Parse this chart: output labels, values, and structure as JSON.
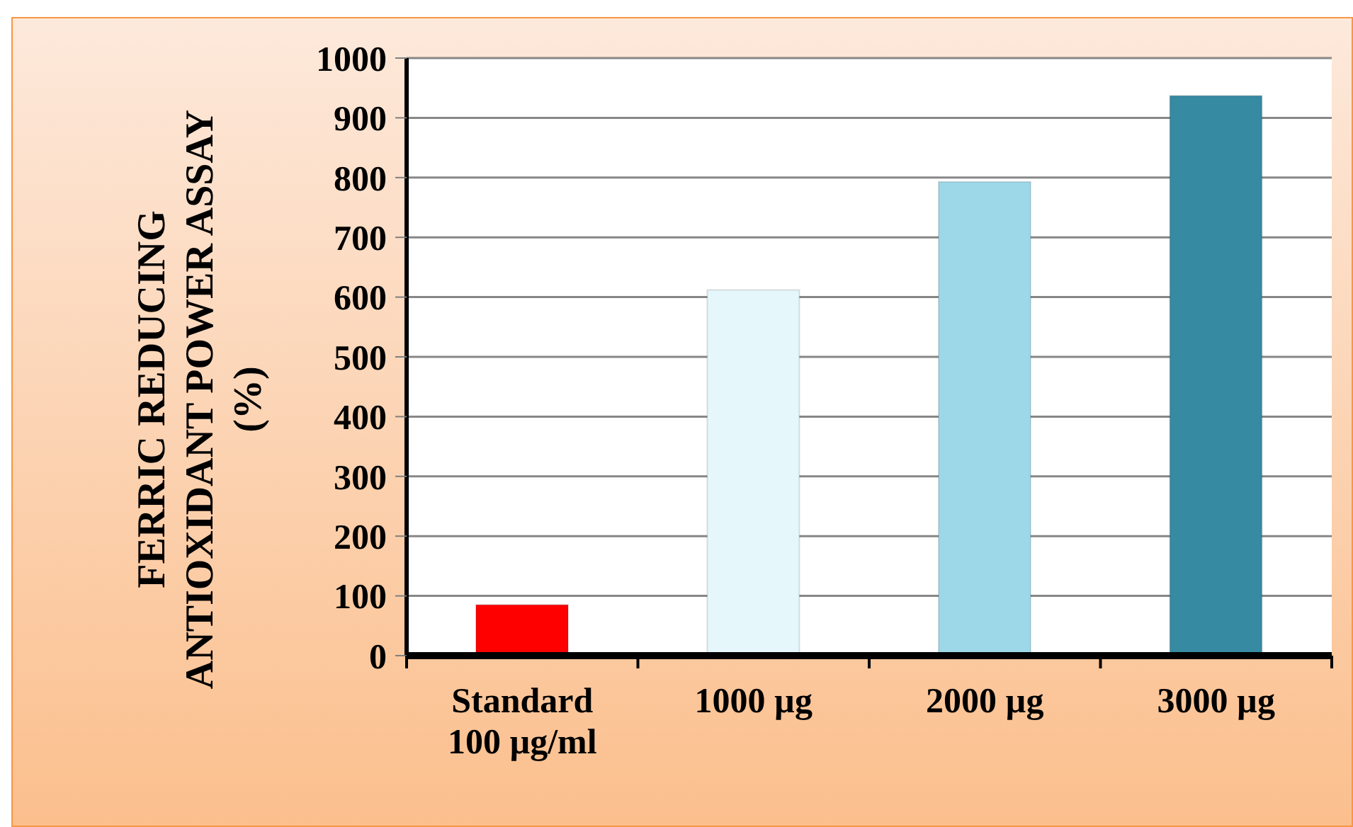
{
  "chart_data": {
    "type": "bar",
    "ylabel": "FERRIC REDUCING ANTIOXIDANT POWER ASSAY (%)",
    "categories": [
      "Standard 100 µg/ml",
      "1000 µg",
      "2000 µg",
      "3000 µg"
    ],
    "values": [
      85,
      612,
      793,
      937
    ],
    "colors": [
      "#ff0000",
      "#e6f7fc",
      "#9dd8e8",
      "#368aa2"
    ],
    "ylim": [
      0,
      1000
    ],
    "yticks": [
      0,
      100,
      200,
      300,
      400,
      500,
      600,
      700,
      800,
      900,
      1000
    ],
    "grid": "y"
  }
}
